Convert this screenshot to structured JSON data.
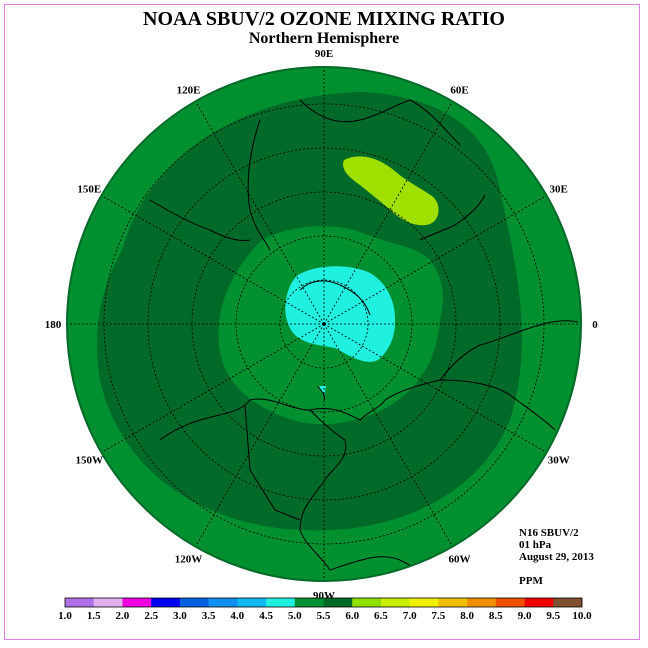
{
  "title": "NOAA SBUV/2 OZONE MIXING RATIO",
  "subtitle": "Northern Hemisphere",
  "longitude_labels": [
    {
      "text": "90E",
      "lon": 90
    },
    {
      "text": "60E",
      "lon": 60
    },
    {
      "text": "30E",
      "lon": 30
    },
    {
      "text": "0",
      "lon": 0
    },
    {
      "text": "30W",
      "lon": -30
    },
    {
      "text": "60W",
      "lon": -60
    },
    {
      "text": "90W",
      "lon": -90
    },
    {
      "text": "120W",
      "lon": -120
    },
    {
      "text": "150W",
      "lon": -150
    },
    {
      "text": "180",
      "lon": 180
    },
    {
      "text": "150E",
      "lon": 150
    },
    {
      "text": "120E",
      "lon": 120
    }
  ],
  "info": {
    "satellite": "N16 SBUV/2",
    "level": "01 hPa",
    "date": "August 29, 2013",
    "units": "PPM"
  },
  "colorbar": {
    "labels": [
      "1.0",
      "1.5",
      "2.0",
      "2.5",
      "3.0",
      "3.5",
      "4.0",
      "4.5",
      "5.0",
      "5.5",
      "6.0",
      "6.5",
      "7.0",
      "7.5",
      "8.0",
      "8.5",
      "9.0",
      "9.5",
      "10.0"
    ],
    "colors": [
      "#b070e8",
      "#e0b0f0",
      "#f000e0",
      "#0000f0",
      "#0060e0",
      "#1090f0",
      "#10b8f0",
      "#20f0e0",
      "#009030",
      "#006a28",
      "#90e000",
      "#c8f000",
      "#f0f000",
      "#f0c000",
      "#f09000",
      "#f05000",
      "#f00000",
      "#805030"
    ]
  },
  "map_legend": {
    "outer_band_color": "#009030",
    "mid_band_color": "#006a28",
    "inner_ring_color": "#009030",
    "polar_core_color": "#20f0e0",
    "high_patch_color": "#a0e000",
    "coast_color": "#000000"
  }
}
